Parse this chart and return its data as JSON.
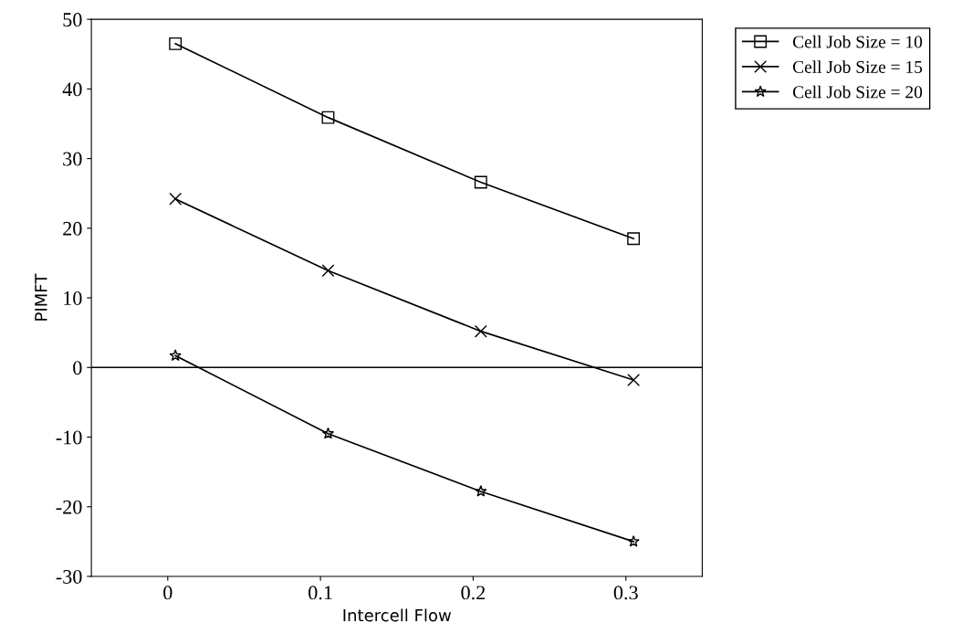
{
  "chart_data": {
    "type": "line",
    "xlabel": "Intercell Flow",
    "ylabel": "PIMFT",
    "xlim": [
      -0.05,
      0.35
    ],
    "xticks": [
      0,
      0.1,
      0.2,
      0.3
    ],
    "ylim": [
      -30,
      50
    ],
    "yticks": [
      -30,
      -20,
      -10,
      0,
      10,
      20,
      30,
      40,
      50
    ],
    "x": [
      0.005,
      0.105,
      0.205,
      0.305
    ],
    "series": [
      {
        "name": "Cell Job Size = 10",
        "color": "#000000",
        "marker": "square",
        "values": [
          46.5,
          35.9,
          26.6,
          18.5
        ]
      },
      {
        "name": "Cell Job Size = 15",
        "color": "#000000",
        "marker": "cross",
        "values": [
          24.2,
          13.9,
          5.2,
          -1.8
        ]
      },
      {
        "name": "Cell Job Size = 20",
        "color": "#000000",
        "marker": "star",
        "values": [
          1.7,
          -9.5,
          -17.8,
          -25.0
        ]
      }
    ],
    "ref_lines": [
      {
        "axis": "y",
        "value": 0,
        "color": "#000000"
      }
    ],
    "grid": false,
    "legend": "right"
  }
}
